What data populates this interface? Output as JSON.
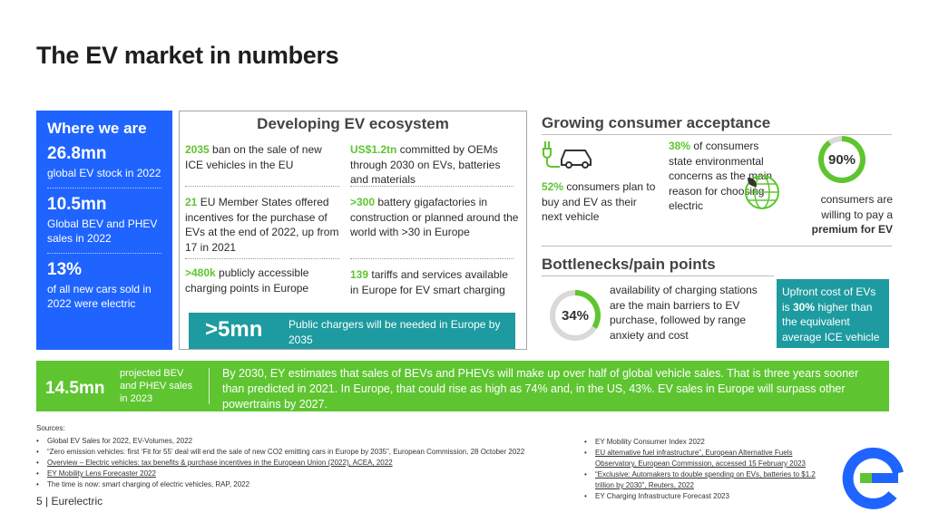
{
  "title": "The EV market in numbers",
  "where": {
    "header": "Where we are",
    "stats": [
      {
        "big": "26.8mn",
        "sub": "global EV stock in 2022"
      },
      {
        "big": "10.5mn",
        "sub": "Global BEV and PHEV sales in 2022"
      },
      {
        "big": "13%",
        "sub": "of all new cars sold in 2022 were electric"
      }
    ]
  },
  "ecosystem": {
    "header": "Developing EV ecosystem",
    "cells": [
      {
        "hl": "2035",
        "text": " ban on the sale of new ICE vehicles in the EU"
      },
      {
        "hl": "US$1.2tn",
        "text": " committed by OEMs through 2030 on EVs, batteries and materials"
      },
      {
        "hl": "21",
        "text": " EU Member States offered incentives for the purchase of EVs at the end of 2022, up from 17 in 2021"
      },
      {
        "hl": ">300",
        "text": " battery gigafactories in construction or planned around the world with >30 in Europe"
      },
      {
        "hl": ">480k",
        "text": " publicly accessible charging points in Europe"
      },
      {
        "hl": "139",
        "text": " tariffs and services available in Europe for EV smart charging"
      }
    ],
    "band": {
      "big": ">5mn",
      "text": "Public chargers will be needed in Europe by 2035"
    }
  },
  "acceptance": {
    "header": "Growing consumer acceptance",
    "buy": {
      "hl": "52%",
      "text": " consumers plan to buy and EV as their next vehicle"
    },
    "env": {
      "hl": "38%",
      "text": " of consumers state environmental concerns as the main reason for choosing electric"
    },
    "pay": {
      "ring": "90%",
      "ring_value": 0.9,
      "text": "consumers are willing to pay a ",
      "hl": "premium for EV"
    }
  },
  "bottlenecks": {
    "header": "Bottlenecks/pain points",
    "ring": "34%",
    "ring_value": 0.34,
    "text": "availability of charging stations are the main barriers to EV purchase, followed by range anxiety and cost",
    "upfront": {
      "pre": "Upfront cost of EVs is ",
      "hl": "30%",
      "post": " higher than the equivalent average ICE vehicle"
    }
  },
  "banner": {
    "big": "14.5mn",
    "sub": "projected BEV and PHEV sales in 2023",
    "text": "By 2030, EY estimates that sales of BEVs and PHEVs will make up over half of global vehicle sales. That is three years sooner than predicted in 2021. In Europe, that could rise as high as 74% and, in the US, 43%.  EV sales in Europe will surpass other powertrains by 2027."
  },
  "sources": {
    "label": "Sources:",
    "left": [
      "Global EV Sales for 2022, EV-Volumes, 2022",
      "“Zero emission vehicles: first ‘Fit for 55’ deal will end the sale of new CO2 emitting cars in Europe by 2035”, European Commission, 28 October 2022",
      "Overview – Electric vehicles: tax benefits & purchase incentives in the European Union (2022), ACEA, 2022",
      "EY Mobility Lens Forecaster 2022",
      "The time is now: smart charging of electric vehicles, RAP, 2022"
    ],
    "right": [
      "EY Mobility Consumer Index 2022",
      "EU alternative fuel infrastructure”, European Alternative Fuels Observatory, European Commission, accessed 15 February 2023",
      "“Exclusive: Automakers to double spending on EVs, batteries to $1.2 trillion by 2030”, Reuters, 2022",
      "EY Charging Infrastructure Forecast 2023"
    ]
  },
  "footer": "5 | Eurelectric",
  "colors": {
    "blue": "#1f64ff",
    "green": "#5ec530",
    "teal": "#1d9ba0"
  },
  "icons": [
    "ev-charging-car-icon",
    "globe-leaf-icon",
    "eurelectric-logo"
  ]
}
